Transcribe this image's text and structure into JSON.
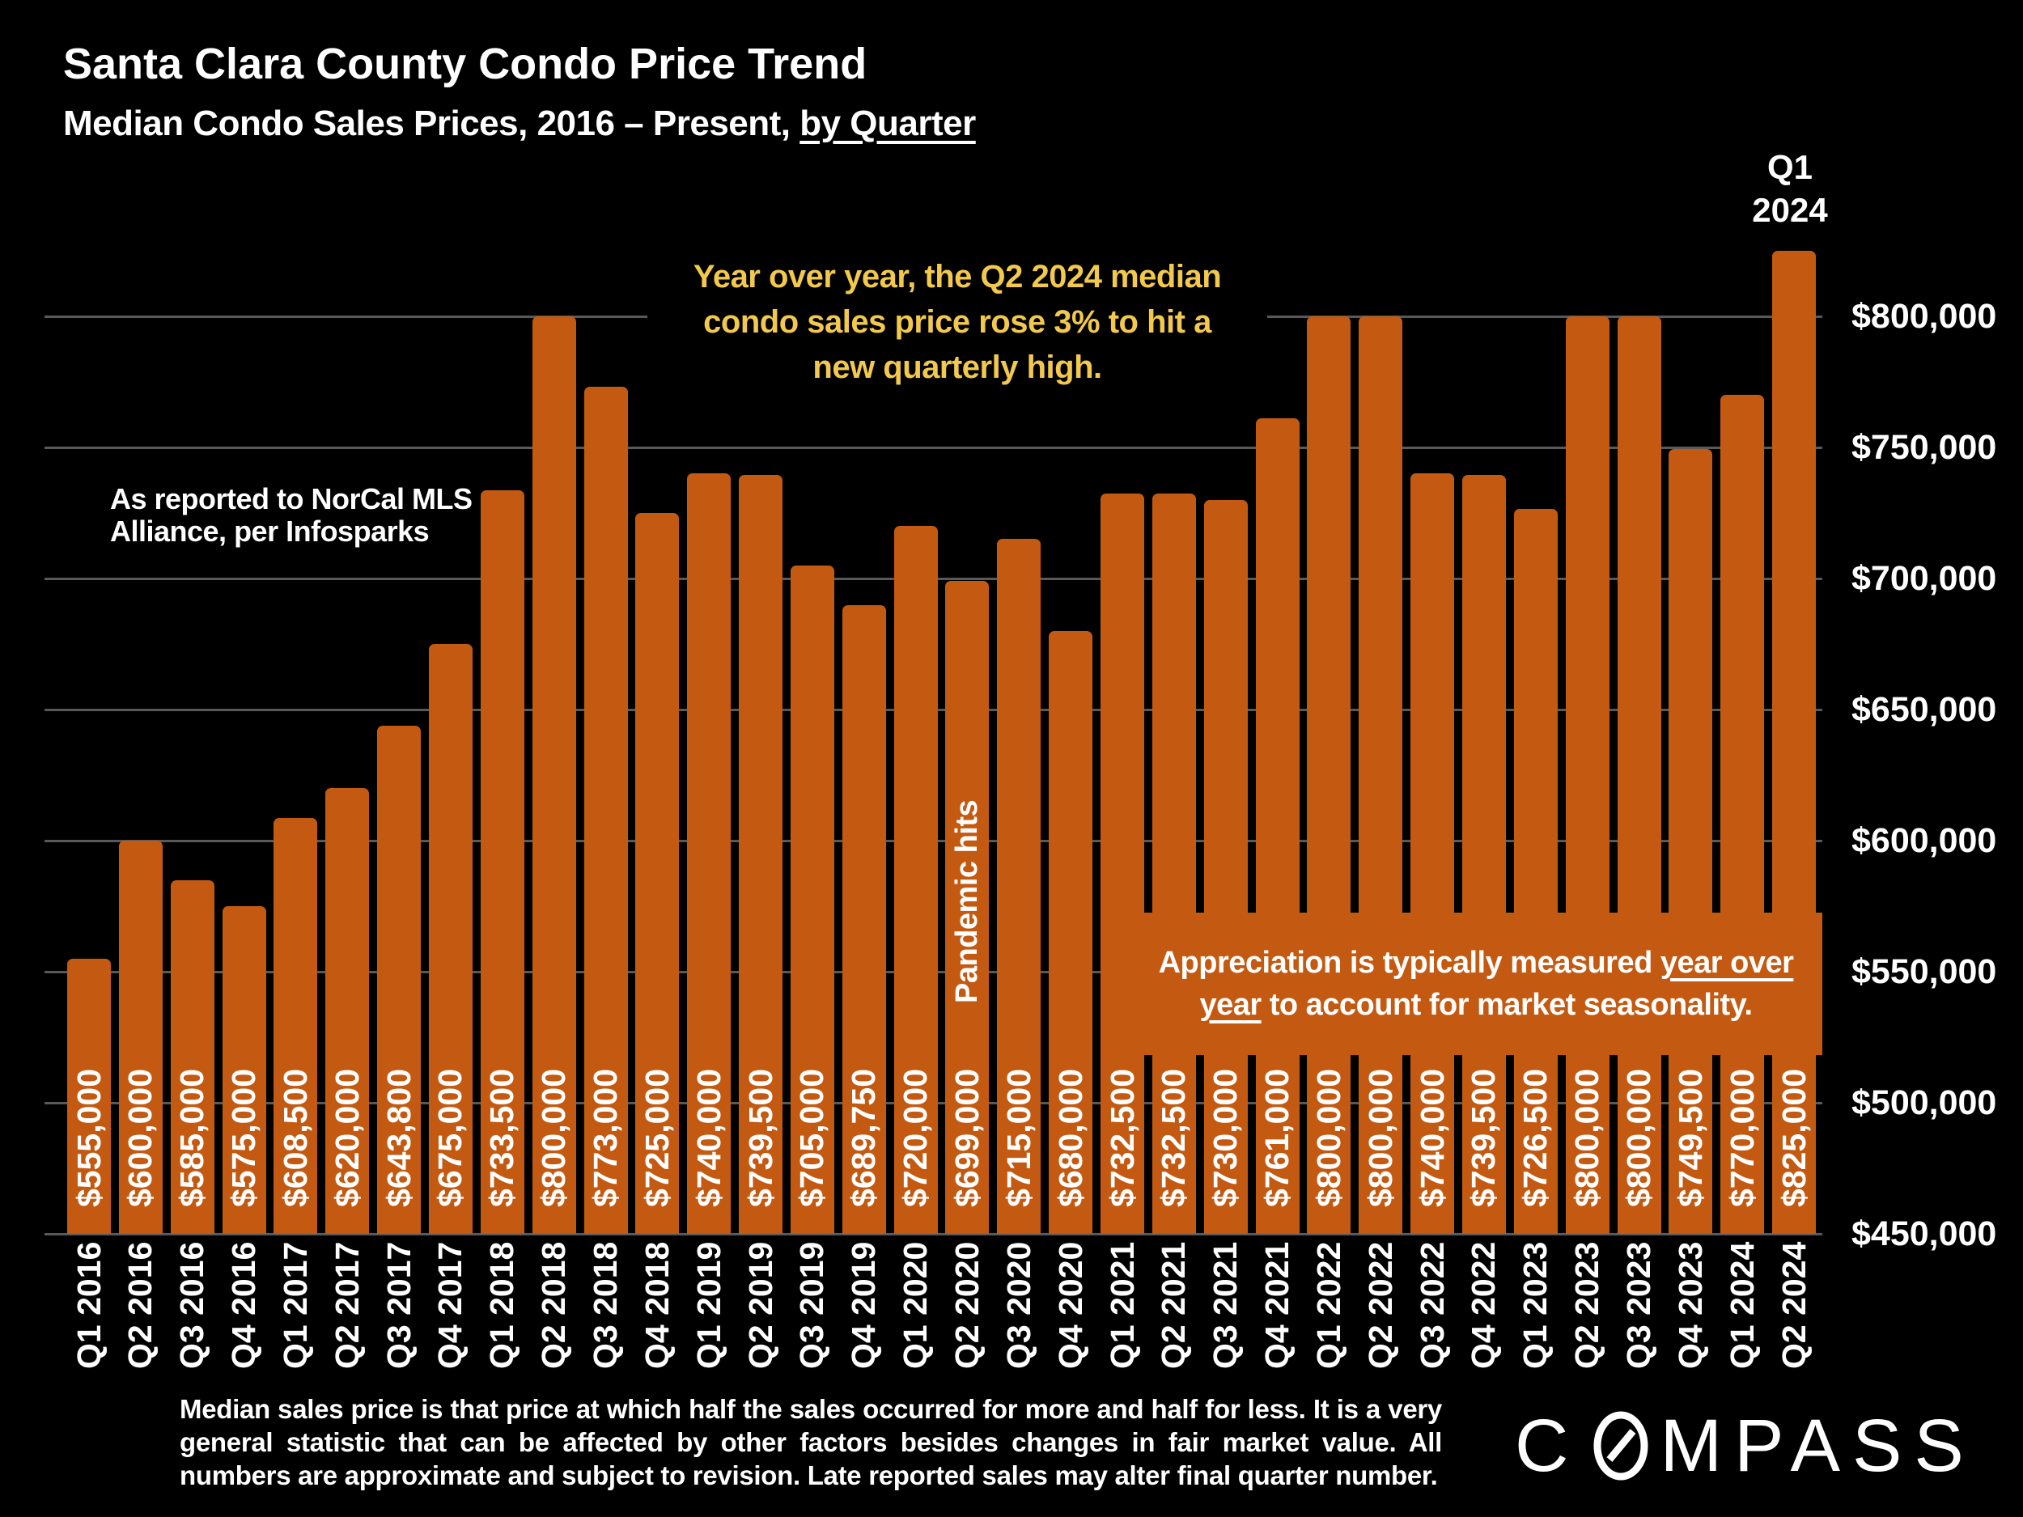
{
  "slide": {
    "title": "Santa Clara County Condo Price Trend",
    "subtitle": {
      "prefix": "Median Condo Sales Prices, 2016 – Present, ",
      "underlined": "by Quarter"
    },
    "top_right_label": {
      "line1": "Q1",
      "line2": "2024"
    },
    "highlight_note": {
      "color": "#F2C94C",
      "lines": [
        "Year over year, the Q2 2024 median",
        "condo sales price rose 3% to hit a",
        "new quarterly high."
      ]
    },
    "source_note": {
      "lines": [
        "As reported to NorCal MLS",
        "Alliance, per Infosparks"
      ]
    },
    "pandemic_label": "Pandemic hits",
    "appreciation_note": {
      "line1_text": "Appreciation is typically measured ",
      "line1_underlined": "year over",
      "line2_underlined": "year",
      "line2_text": " to account for market seasonality."
    },
    "footer": "Median sales price is that price at which half the sales occurred for more and half for less. It is a very general statistic that can be affected by other factors besides changes in fair market value. All numbers are approximate and subject to revision. Late reported sales may alter final quarter number.",
    "logo": {
      "first_letter": "C",
      "rest": "MPASS"
    }
  },
  "chart_data": {
    "type": "bar",
    "title": "Santa Clara County Condo Price Trend",
    "subtitle": "Median Condo Sales Prices, 2016 – Present, by Quarter",
    "xlabel": "",
    "ylabel": "",
    "ylim": [
      450000,
      825000
    ],
    "grid": true,
    "legend": false,
    "bar_color": "#C45A11",
    "gridline_color": "#595959",
    "background_color": "#000000",
    "value_label_color": "#FFFFFF",
    "y_ticks": [
      "$450,000",
      "$500,000",
      "$550,000",
      "$600,000",
      "$650,000",
      "$700,000",
      "$750,000",
      "$800,000"
    ],
    "y_tick_values": [
      450000,
      500000,
      550000,
      600000,
      650000,
      700000,
      750000,
      800000
    ],
    "categories": [
      "Q1 2016",
      "Q2 2016",
      "Q3 2016",
      "Q4 2016",
      "Q1 2017",
      "Q2 2017",
      "Q3 2017",
      "Q4 2017",
      "Q1 2018",
      "Q2 2018",
      "Q3 2018",
      "Q4 2018",
      "Q1 2019",
      "Q2 2019",
      "Q3 2019",
      "Q4 2019",
      "Q1 2020",
      "Q2 2020",
      "Q3 2020",
      "Q4 2020",
      "Q1 2021",
      "Q2 2021",
      "Q3 2021",
      "Q4 2021",
      "Q1 2022",
      "Q2 2022",
      "Q3 2022",
      "Q4 2022",
      "Q1 2023",
      "Q2 2023",
      "Q3 2023",
      "Q4 2023",
      "Q1 2024",
      "Q2 2024"
    ],
    "values": [
      555000,
      600000,
      585000,
      575000,
      608500,
      620000,
      643800,
      675000,
      733500,
      800000,
      773000,
      725000,
      740000,
      739500,
      705000,
      689750,
      720000,
      699000,
      715000,
      680000,
      732500,
      732500,
      730000,
      761000,
      800000,
      800000,
      740000,
      739500,
      726500,
      800000,
      800000,
      749500,
      770000,
      825000
    ],
    "bar_labels": [
      "$555,000",
      "$600,000",
      "$585,000",
      "$575,000",
      "$608,500",
      "$620,000",
      "$643,800",
      "$675,000",
      "$733,500",
      "$800,000",
      "$773,000",
      "$725,000",
      "$740,000",
      "$739,500",
      "$705,000",
      "$689,750",
      "$720,000",
      "$699,000",
      "$715,000",
      "$680,000",
      "$732,500",
      "$732,500",
      "$730,000",
      "$761,000",
      "$800,000",
      "$800,000",
      "$740,000",
      "$739,500",
      "$726,500",
      "$800,000",
      "$800,000",
      "$749,500",
      "$770,000",
      "$825,000"
    ],
    "pandemic_annotation_category": "Q2 2020"
  }
}
